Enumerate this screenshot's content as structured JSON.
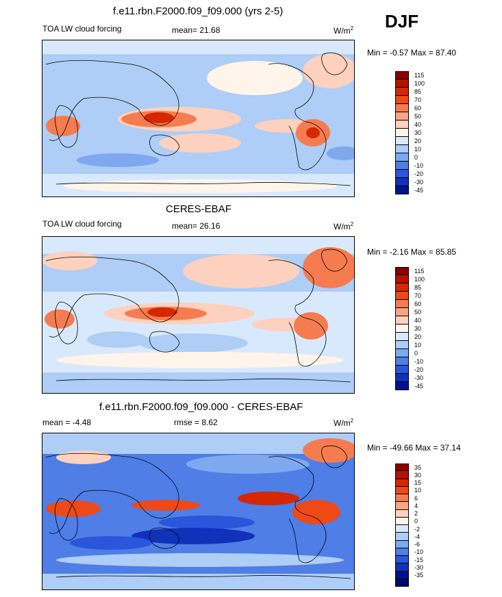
{
  "season": "DJF",
  "chart_data": [
    {
      "type": "heatmap",
      "title": "f.e11.rbn.F2000.f09_f09.000 (yrs 2-5)",
      "left_label": "TOA LW cloud forcing",
      "stat_label": "mean=  21.68",
      "units": "W/m",
      "units_exp": "2",
      "minmax": "Min =  -0.57 Max =  87.40",
      "colorbar_levels": [
        "115",
        "100",
        "85",
        "70",
        "60",
        "50",
        "40",
        "30",
        "20",
        "10",
        "0",
        "-10",
        "-20",
        "-30",
        "-45"
      ],
      "colors": [
        "#8a0000",
        "#b31200",
        "#d62800",
        "#ee4a17",
        "#f57c50",
        "#fba483",
        "#fdd1bd",
        "#fff4ea",
        "#d9e9fd",
        "#aecdf7",
        "#7ea9ef",
        "#4e7ee6",
        "#2a56dc",
        "#1031ba",
        "#01138c"
      ]
    },
    {
      "type": "heatmap",
      "title": "CERES-EBAF",
      "left_label": "TOA LW cloud forcing",
      "stat_label": "mean=  26.16",
      "units": "W/m",
      "units_exp": "2",
      "minmax": "Min =  -2.16 Max =  85.85",
      "colorbar_levels": [
        "115",
        "100",
        "85",
        "70",
        "60",
        "50",
        "40",
        "30",
        "20",
        "10",
        "0",
        "-10",
        "-20",
        "-30",
        "-45"
      ],
      "colors": [
        "#8a0000",
        "#b31200",
        "#d62800",
        "#ee4a17",
        "#f57c50",
        "#fba483",
        "#fdd1bd",
        "#fff4ea",
        "#d9e9fd",
        "#aecdf7",
        "#7ea9ef",
        "#4e7ee6",
        "#2a56dc",
        "#1031ba",
        "#01138c"
      ]
    },
    {
      "type": "heatmap",
      "title": "f.e11.rbn.F2000.f09_f09.000 - CERES-EBAF",
      "left_label": "mean =  -4.48",
      "stat_label": "rmse =   8.62",
      "units": "W/m",
      "units_exp": "2",
      "minmax": "Min = -49.66 Max =  37.14",
      "colorbar_levels": [
        "35",
        "30",
        "15",
        "10",
        "6",
        "4",
        "2",
        "0",
        "-2",
        "-4",
        "-6",
        "-10",
        "-15",
        "-30",
        "-35"
      ],
      "colors": [
        "#8a0000",
        "#b31200",
        "#d62800",
        "#ee4a17",
        "#f57c50",
        "#fba483",
        "#fdd1bd",
        "#fff4ea",
        "#d9e9fd",
        "#aecdf7",
        "#7ea9ef",
        "#4e7ee6",
        "#2a56dc",
        "#1031ba",
        "#01138c",
        "#000a6b"
      ]
    }
  ]
}
